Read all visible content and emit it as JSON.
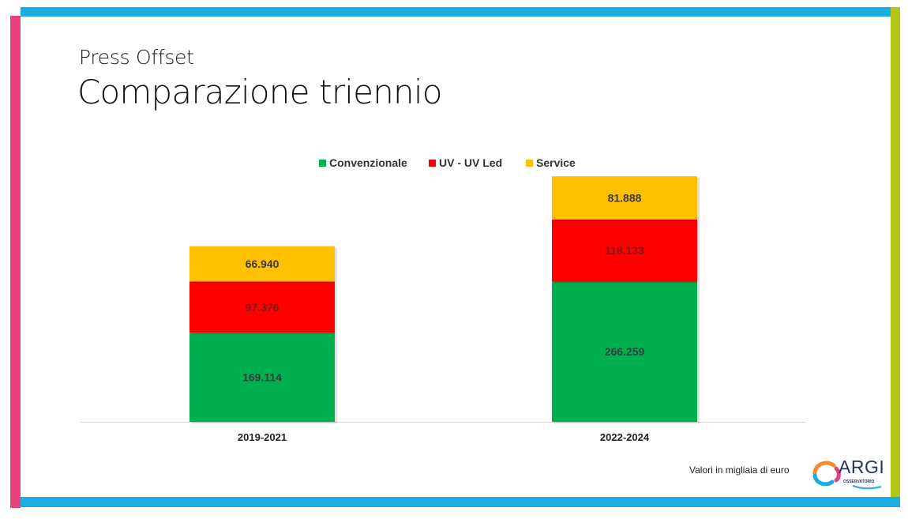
{
  "slide": {
    "subtitle": "Press Offset",
    "title": "Comparazione triennio",
    "footnote": "Valori in migliaia di euro",
    "logo": {
      "name": "ARGI",
      "sub": "OSSERVATORIO"
    }
  },
  "colors": {
    "frame_cyan": "#1AAEE0",
    "frame_pink": "#E8417E",
    "frame_green": "#B5C61B",
    "convenzionale": "#00B050",
    "uv": "#FF0000",
    "service": "#FFC000"
  },
  "chart_data": {
    "type": "bar",
    "stacked": true,
    "categories": [
      "2019-2021",
      "2022-2024"
    ],
    "series": [
      {
        "name": "Convenzionale",
        "values": [
          169114,
          266259
        ],
        "labels": [
          "169.114",
          "266.259"
        ],
        "color": "#00B050"
      },
      {
        "name": "UV - UV Led",
        "values": [
          97376,
          118133
        ],
        "labels": [
          "97.376",
          "118.133"
        ],
        "color": "#FF0000"
      },
      {
        "name": "Service",
        "values": [
          66940,
          81888
        ],
        "labels": [
          "66.940",
          "81.888"
        ],
        "color": "#FFC000"
      }
    ],
    "ylim": [
      0,
      480000
    ],
    "legend": "top-center",
    "grid": false
  }
}
